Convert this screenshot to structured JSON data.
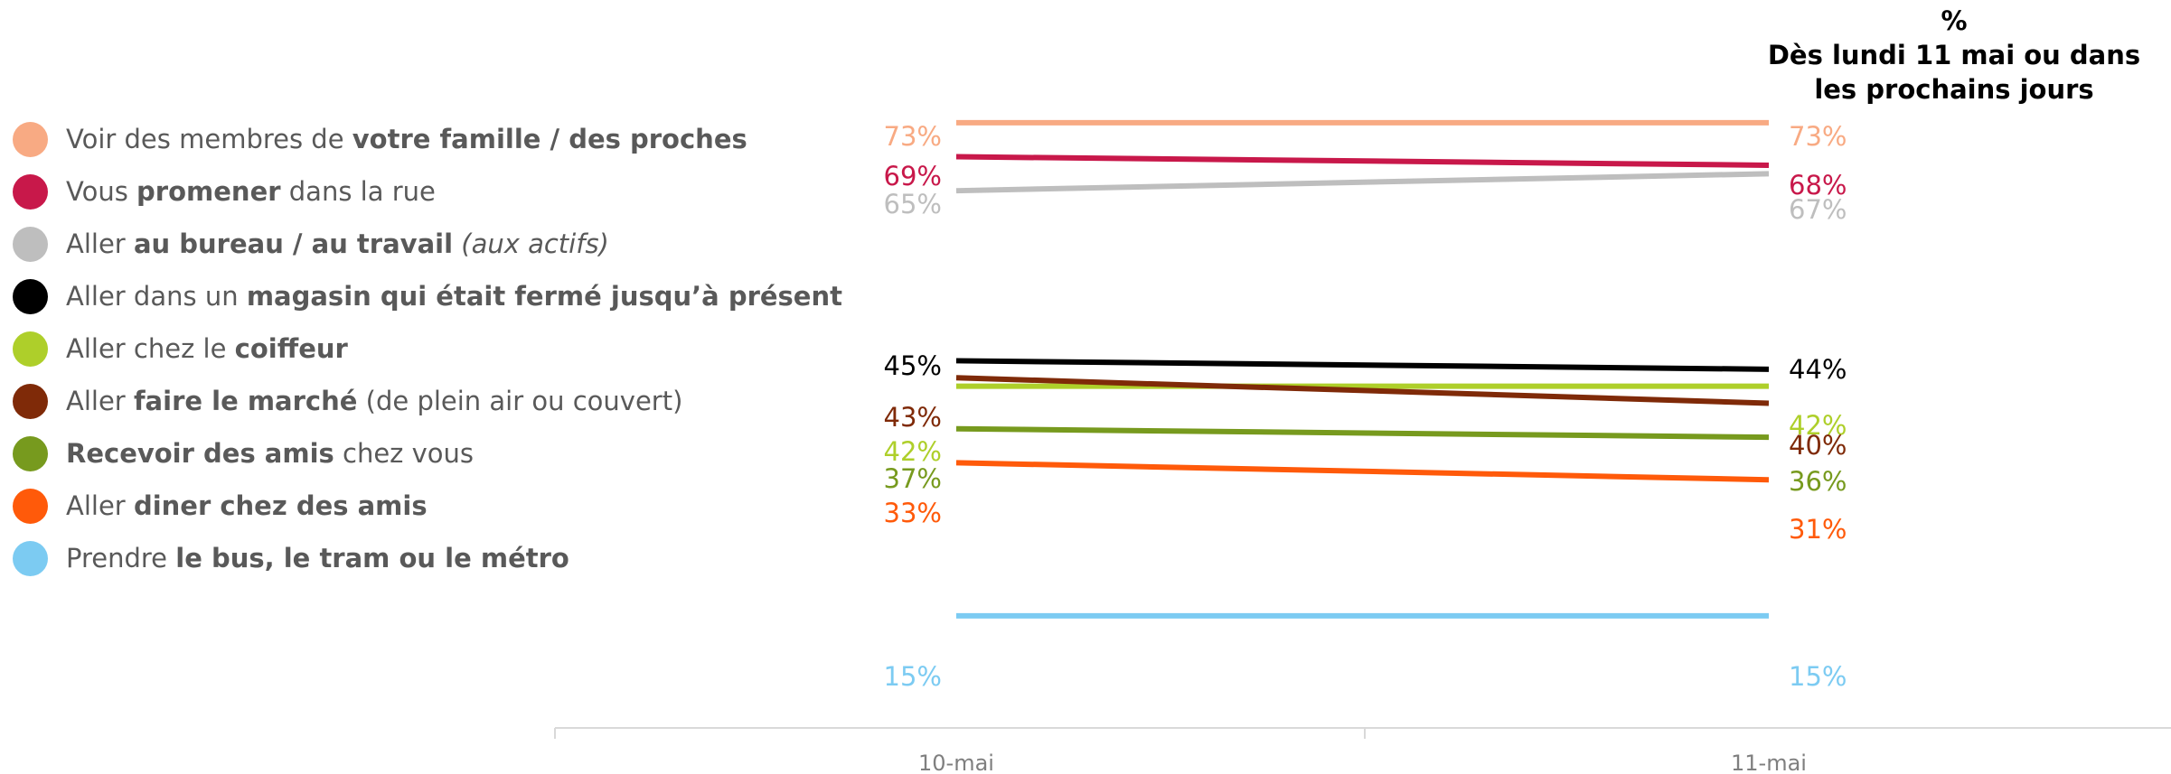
{
  "header": {
    "unit": "%",
    "column_title_line1": "Dès lundi 11 mai ou dans",
    "column_title_line2": "les prochains jours"
  },
  "legend": [
    {
      "color": "#F8AA83",
      "parts": [
        {
          "t": "Voir des membres de ",
          "s": "n"
        },
        {
          "t": "votre famille / des proches",
          "s": "b"
        }
      ]
    },
    {
      "color": "#C8184A",
      "parts": [
        {
          "t": "Vous ",
          "s": "n"
        },
        {
          "t": "promener",
          "s": "b"
        },
        {
          "t": " dans la rue",
          "s": "n"
        }
      ]
    },
    {
      "color": "#BEBEBE",
      "parts": [
        {
          "t": "Aller ",
          "s": "n"
        },
        {
          "t": "au bureau / au travail",
          "s": "b"
        },
        {
          "t": " ",
          "s": "n"
        },
        {
          "t": "(aux actifs)",
          "s": "i"
        }
      ]
    },
    {
      "color": "#000000",
      "parts": [
        {
          "t": "Aller dans un ",
          "s": "n"
        },
        {
          "t": "magasin qui était fermé jusqu’à présent",
          "s": "b"
        }
      ]
    },
    {
      "color": "#AECF2A",
      "parts": [
        {
          "t": "Aller chez le ",
          "s": "n"
        },
        {
          "t": "coiffeur",
          "s": "b"
        }
      ]
    },
    {
      "color": "#7F2A08",
      "parts": [
        {
          "t": "Aller ",
          "s": "n"
        },
        {
          "t": "faire le marché",
          "s": "b"
        },
        {
          "t": " (de plein air ou couvert)",
          "s": "n"
        }
      ]
    },
    {
      "color": "#779A1E",
      "parts": [
        {
          "t": "Recevoir des amis",
          "s": "b"
        },
        {
          "t": " chez vous",
          "s": "n"
        }
      ]
    },
    {
      "color": "#FF5A0A",
      "parts": [
        {
          "t": "Aller ",
          "s": "n"
        },
        {
          "t": "diner chez des amis",
          "s": "b"
        }
      ]
    },
    {
      "color": "#7CCBF2",
      "parts": [
        {
          "t": "Prendre ",
          "s": "n"
        },
        {
          "t": "le bus, le tram ou le métro",
          "s": "b"
        }
      ]
    }
  ],
  "chart_data": {
    "type": "line",
    "x": [
      "10-mai",
      "11-mai"
    ],
    "ylim": [
      0,
      80
    ],
    "value_format": "{v}%",
    "grid": false,
    "series": [
      {
        "values": [
          73,
          73
        ],
        "color": "#F8AA83"
      },
      {
        "values": [
          69,
          68
        ],
        "color": "#C8184A"
      },
      {
        "values": [
          65,
          67
        ],
        "color": "#BEBEBE"
      },
      {
        "values": [
          45,
          44
        ],
        "color": "#000000"
      },
      {
        "values": [
          42,
          42
        ],
        "color": "#AECF2A"
      },
      {
        "values": [
          43,
          40
        ],
        "color": "#7F2A08"
      },
      {
        "values": [
          37,
          36
        ],
        "color": "#779A1E"
      },
      {
        "values": [
          33,
          31
        ],
        "color": "#FF5A0A"
      },
      {
        "values": [
          15,
          15
        ],
        "color": "#7CCBF2"
      }
    ]
  }
}
